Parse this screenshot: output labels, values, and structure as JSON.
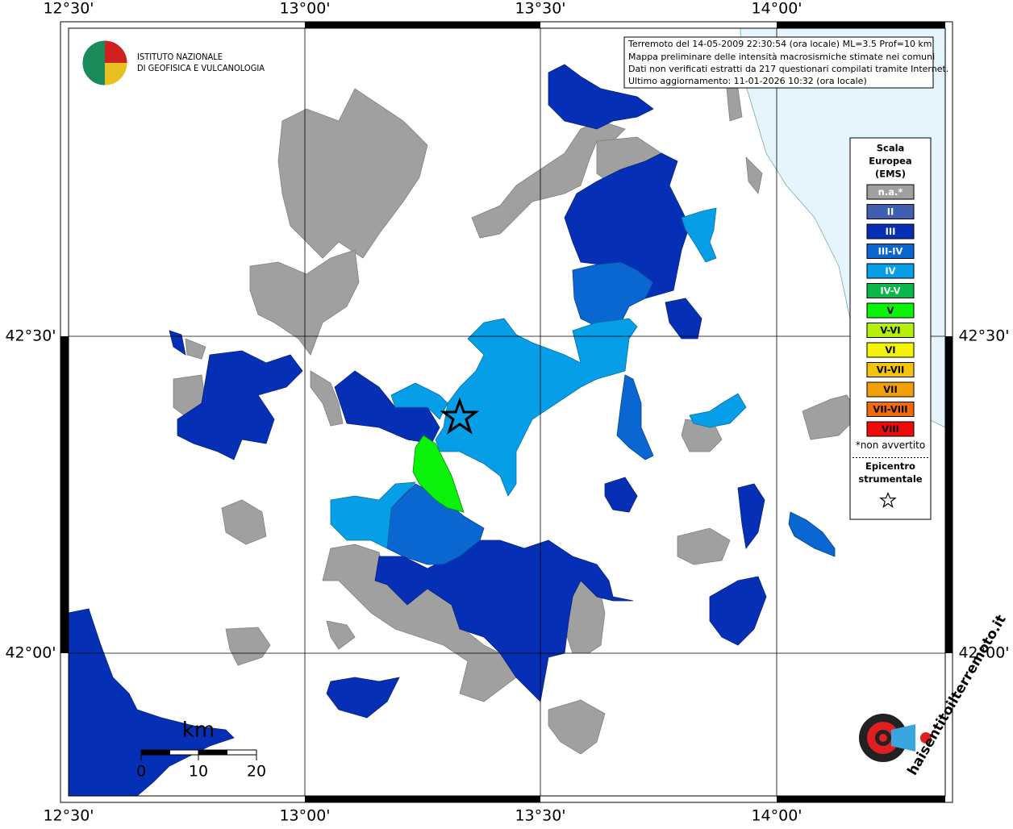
{
  "map": {
    "lon_labels": [
      "12°30'",
      "13°00'",
      "13°30'",
      "14°00'"
    ],
    "lat_labels": [
      "42°30'",
      "42°00'"
    ],
    "institute": [
      "ISTITUTO NAZIONALE",
      "DI GEOFISICA E VULCANOLOGIA"
    ],
    "info": [
      "Terremoto del 14-05-2009 22:30:54 (ora locale) ML=3.5 Prof=10 km",
      "Mappa preliminare delle intensità macrosismiche stimate nei comuni",
      "Dati non verificati estratti da 217 questionari compilati tramite Internet.",
      "Ultimo aggiornamento: 11-01-2026 10:32 (ora locale)"
    ],
    "legend": {
      "title": [
        "Scala",
        "Europea",
        "(EMS)"
      ],
      "items": [
        {
          "label": "n.a.*",
          "color": "#a0a0a0",
          "text_color": "#ffffff"
        },
        {
          "label": "II",
          "color": "#3f5fb0",
          "text_color": "#ffffff"
        },
        {
          "label": "III",
          "color": "#0530b5",
          "text_color": "#ffffff"
        },
        {
          "label": "III-IV",
          "color": "#0a66d0",
          "text_color": "#ffffff"
        },
        {
          "label": "IV",
          "color": "#069ee6",
          "text_color": "#ffffff"
        },
        {
          "label": "IV-V",
          "color": "#0ab84a",
          "text_color": "#ffffff"
        },
        {
          "label": "V",
          "color": "#0af20a",
          "text_color": "#000000"
        },
        {
          "label": "V-VI",
          "color": "#b4f00a",
          "text_color": "#000000"
        },
        {
          "label": "VI",
          "color": "#f2f20a",
          "text_color": "#000000"
        },
        {
          "label": "VI-VII",
          "color": "#f2c40a",
          "text_color": "#000000"
        },
        {
          "label": "VII",
          "color": "#f2a00a",
          "text_color": "#000000"
        },
        {
          "label": "VII-VIII",
          "color": "#f26a0a",
          "text_color": "#000000"
        },
        {
          "label": "VIII",
          "color": "#f20a0a",
          "text_color": "#000000"
        }
      ],
      "note": "*non avvertito",
      "epicenter": [
        "Epicentro",
        "strumentale"
      ]
    },
    "scale": {
      "unit": "km",
      "labels": [
        "0",
        "10",
        "20"
      ]
    },
    "site_logo": "haisentitoilterremoto.it"
  }
}
